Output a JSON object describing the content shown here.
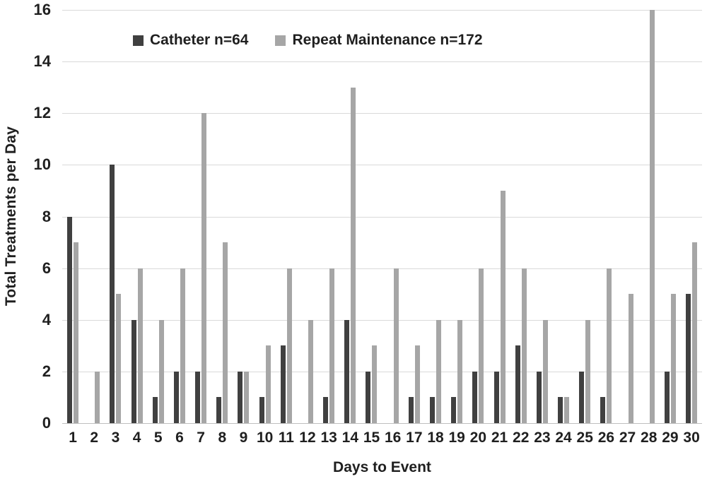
{
  "chart_data": {
    "type": "bar",
    "title": "",
    "xlabel": "Days to Event",
    "ylabel": "Total Treatments per Day",
    "categories": [
      1,
      2,
      3,
      4,
      5,
      6,
      7,
      8,
      9,
      10,
      11,
      12,
      13,
      14,
      15,
      16,
      17,
      18,
      19,
      20,
      21,
      22,
      23,
      24,
      25,
      26,
      27,
      28,
      29,
      30
    ],
    "series": [
      {
        "name": "Catheter n=64",
        "color": "#404040",
        "values": [
          8,
          0,
          10,
          4,
          1,
          2,
          2,
          1,
          2,
          1,
          3,
          0,
          1,
          4,
          2,
          0,
          1,
          1,
          1,
          2,
          2,
          3,
          2,
          1,
          2,
          1,
          0,
          0,
          2,
          5
        ]
      },
      {
        "name": "Repeat Maintenance n=172",
        "color": "#a6a6a6",
        "values": [
          7,
          2,
          5,
          6,
          4,
          6,
          12,
          7,
          2,
          3,
          6,
          4,
          6,
          13,
          3,
          6,
          3,
          4,
          4,
          6,
          9,
          6,
          4,
          1,
          4,
          6,
          5,
          16,
          5,
          7
        ]
      }
    ],
    "ylim": [
      0,
      16
    ],
    "ytick_step": 2,
    "yticks": [
      0,
      2,
      4,
      6,
      8,
      10,
      12,
      14,
      16
    ],
    "grid": true,
    "legend_position": "top-left",
    "gridline_color": "#d9d9d9",
    "text_color": "#1f1f1f"
  }
}
